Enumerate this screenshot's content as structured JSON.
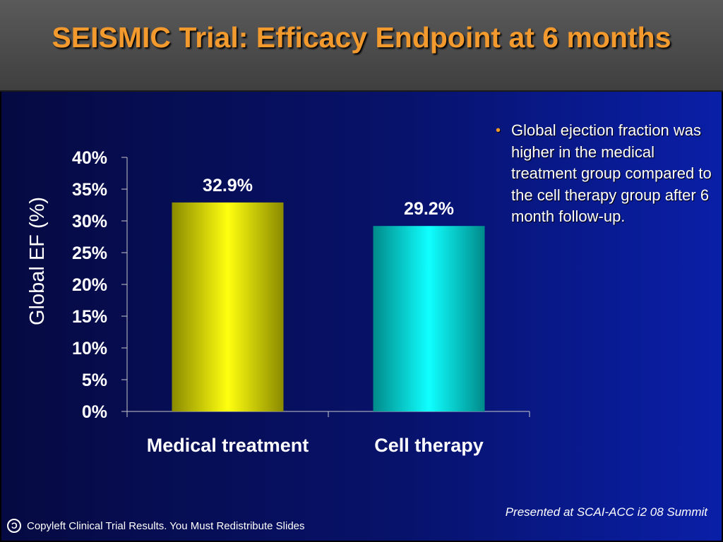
{
  "slide": {
    "title": "SEISMIC Trial: Efficacy Endpoint at 6 months",
    "bullet": "Global ejection fraction was higher in the medical treatment group compared to the cell therapy group after 6 month follow-up.",
    "presented": "Presented at SCAI-ACC i2 08 Summit",
    "footer": "Copyleft Clinical Trial Results. You Must Redistribute Slides",
    "accent_color": "#f39a2e"
  },
  "chart_data": {
    "type": "bar",
    "categories": [
      "Medical treatment",
      "Cell therapy"
    ],
    "values": [
      32.9,
      29.2
    ],
    "value_labels": [
      "32.9%",
      "29.2%"
    ],
    "ylabel": "Global EF (%)",
    "ylim": [
      0,
      40
    ],
    "yticks": [
      "0%",
      "5%",
      "10%",
      "15%",
      "20%",
      "25%",
      "30%",
      "35%",
      "40%"
    ],
    "colors": [
      "#f0f000",
      "#00f0f0"
    ],
    "grid": false,
    "legend": "none"
  }
}
